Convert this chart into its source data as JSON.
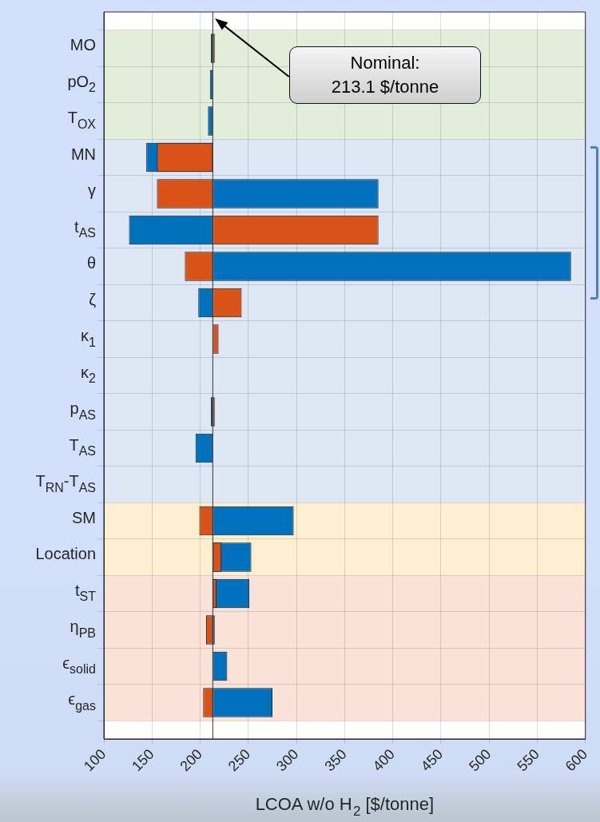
{
  "chart_data": {
    "type": "bar",
    "orientation": "horizontal",
    "xlabel": "LCOA w/o H$_{2}$ [$/tonne]",
    "categories": [
      "MO",
      "pO$_{2}$",
      "T$_{OX}$",
      "MN",
      "γ",
      "t$_{AS}$",
      "θ",
      "ζ",
      "κ$_{1}$",
      "κ$_{2}$",
      "p$_{AS}$",
      "T$_{AS}$",
      "T$_{RN}$-T$_{AS}$",
      "SM",
      "Location",
      "t$_{ST}$",
      "η$_{PB}$",
      "ϵ$_{solid}$",
      "ϵ$_{gas}$"
    ],
    "series": [
      {
        "color": "#0072bd",
        "values": [
          -2,
          -3,
          -5,
          -69,
          172,
          -87,
          372,
          -15,
          null,
          null,
          -2,
          -18,
          null,
          84,
          40,
          38,
          2,
          15,
          62
        ],
        "base": [
          213.1,
          213.1,
          213.1,
          213.1,
          213.1,
          213.1,
          213.1,
          213.1,
          null,
          null,
          213.1,
          213.1,
          null,
          213.1,
          213.1,
          213.1,
          213.1,
          213.1,
          213.1
        ]
      },
      {
        "color": "#d95319",
        "values": [
          2,
          null,
          null,
          -58,
          -58,
          172,
          -29,
          30,
          6,
          null,
          2,
          null,
          null,
          -14,
          9,
          4,
          -7,
          null,
          -10
        ],
        "base": [
          213.1,
          null,
          null,
          213.1,
          213.1,
          213.1,
          213.1,
          213.1,
          213.1,
          null,
          213.1,
          null,
          null,
          213.1,
          213.1,
          213.1,
          213.1,
          null,
          213.1
        ]
      }
    ],
    "xlim": [
      100,
      600
    ],
    "xticks": [
      100,
      150,
      200,
      250,
      300,
      350,
      400,
      450,
      500,
      550,
      600
    ],
    "grid": true,
    "legend": false,
    "ref_lines": [
      {
        "axis": "x",
        "value": 213.1,
        "color": "#333333"
      }
    ],
    "bands": [
      {
        "axis": "y",
        "from": "MO",
        "to": "T$_{OX}$",
        "color": "#e2eed9"
      },
      {
        "axis": "y",
        "from": "MN",
        "to": "T$_{RN}$-T$_{AS}$",
        "color": "#dde8f4"
      },
      {
        "axis": "y",
        "from": "SM",
        "to": "Location",
        "color": "#fdefd0"
      },
      {
        "axis": "y",
        "from": "t$_{ST}$",
        "to": "ϵ$_{gas}$",
        "color": "#f9e3d8"
      }
    ],
    "annotations": [
      "Nominal:\n213.1 $/tonne"
    ]
  }
}
